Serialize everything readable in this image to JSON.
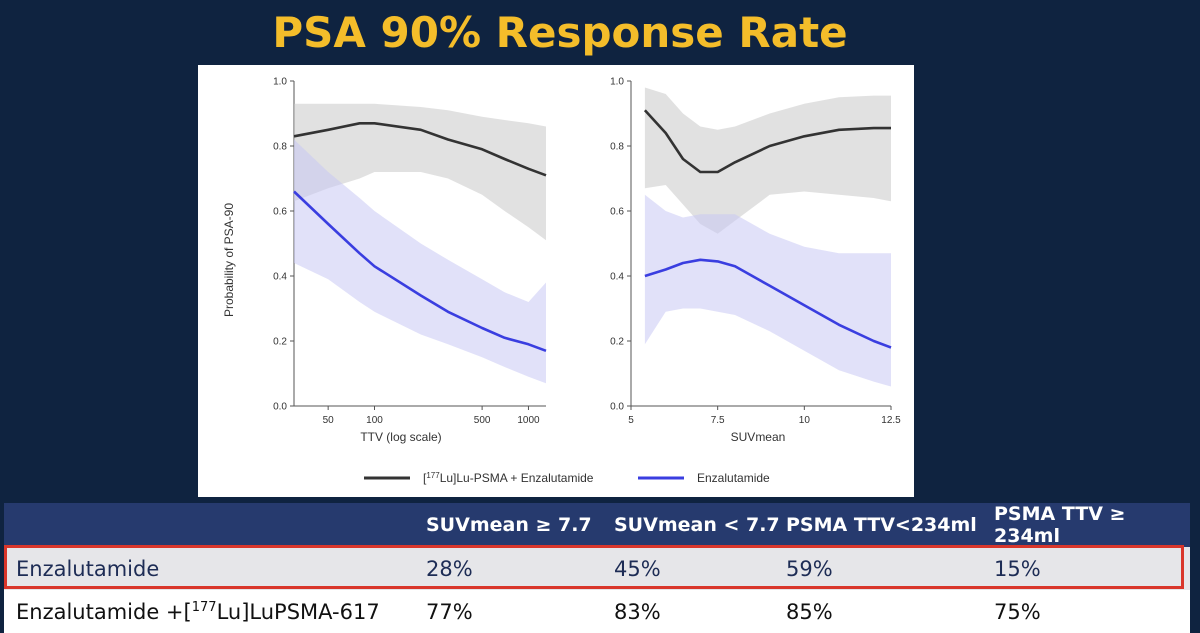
{
  "title": "PSA 90% Response Rate",
  "colors": {
    "combo": "#333333",
    "enza": "#3a3ee0",
    "combo_band": "#c8c8c8",
    "enza_band": "#c8c8f4",
    "highlight": "#d9362b",
    "title": "#f4bd2a"
  },
  "legend": {
    "combo_label": "[177Lu]Lu-PSMA + Enzalutamide",
    "enza_label": "Enzalutamide"
  },
  "chart_data": [
    {
      "type": "line",
      "xlabel": "TTV (log scale)",
      "ylabel": "Probability of PSA-90",
      "xscale": "log",
      "xlim": [
        30,
        1300
      ],
      "ylim": [
        0,
        1
      ],
      "xticks": [
        50,
        100,
        500,
        1000
      ],
      "yticks": [
        "0.0",
        "0.2",
        "0.4",
        "0.6",
        "0.8",
        "1.0"
      ],
      "series": [
        {
          "name": "[177Lu]Lu-PSMA + Enzalutamide",
          "x": [
            30,
            50,
            80,
            100,
            200,
            300,
            500,
            700,
            1000,
            1300
          ],
          "y": [
            0.83,
            0.85,
            0.87,
            0.87,
            0.85,
            0.82,
            0.79,
            0.76,
            0.73,
            0.71
          ],
          "lower": [
            0.63,
            0.67,
            0.7,
            0.72,
            0.72,
            0.7,
            0.65,
            0.6,
            0.55,
            0.51
          ],
          "upper": [
            0.93,
            0.93,
            0.93,
            0.93,
            0.92,
            0.91,
            0.89,
            0.88,
            0.87,
            0.86
          ]
        },
        {
          "name": "Enzalutamide",
          "x": [
            30,
            50,
            80,
            100,
            200,
            300,
            500,
            700,
            1000,
            1300
          ],
          "y": [
            0.66,
            0.56,
            0.47,
            0.43,
            0.34,
            0.29,
            0.24,
            0.21,
            0.19,
            0.17
          ],
          "lower": [
            0.44,
            0.39,
            0.32,
            0.29,
            0.22,
            0.19,
            0.15,
            0.12,
            0.09,
            0.07
          ],
          "upper": [
            0.82,
            0.72,
            0.64,
            0.6,
            0.5,
            0.45,
            0.39,
            0.35,
            0.32,
            0.38
          ]
        }
      ]
    },
    {
      "type": "line",
      "xlabel": "SUVmean",
      "ylabel": "",
      "xlim": [
        5,
        12.5
      ],
      "ylim": [
        0,
        1
      ],
      "xticks": [
        5,
        7.5,
        10,
        12.5
      ],
      "yticks": [
        "0.0",
        "0.2",
        "0.4",
        "0.6",
        "0.8",
        "1.0"
      ],
      "series": [
        {
          "name": "[177Lu]Lu-PSMA + Enzalutamide",
          "x": [
            5.4,
            6,
            6.5,
            7,
            7.5,
            8,
            9,
            10,
            11,
            12,
            12.5
          ],
          "y": [
            0.91,
            0.84,
            0.76,
            0.72,
            0.72,
            0.75,
            0.8,
            0.83,
            0.85,
            0.855,
            0.855
          ],
          "lower": [
            0.67,
            0.68,
            0.62,
            0.56,
            0.53,
            0.57,
            0.65,
            0.66,
            0.65,
            0.64,
            0.63
          ],
          "upper": [
            0.98,
            0.96,
            0.9,
            0.86,
            0.85,
            0.86,
            0.9,
            0.93,
            0.95,
            0.955,
            0.955
          ]
        },
        {
          "name": "Enzalutamide",
          "x": [
            5.4,
            6,
            6.5,
            7,
            7.5,
            8,
            9,
            10,
            11,
            12,
            12.5
          ],
          "y": [
            0.4,
            0.42,
            0.44,
            0.45,
            0.445,
            0.43,
            0.37,
            0.31,
            0.25,
            0.2,
            0.18
          ],
          "lower": [
            0.19,
            0.29,
            0.3,
            0.3,
            0.29,
            0.28,
            0.23,
            0.17,
            0.11,
            0.075,
            0.06
          ],
          "upper": [
            0.65,
            0.6,
            0.58,
            0.59,
            0.59,
            0.59,
            0.53,
            0.49,
            0.47,
            0.47,
            0.47
          ]
        }
      ]
    }
  ],
  "table": {
    "headers": [
      "",
      "SUVmean ≥ 7.7",
      "SUVmean < 7.7",
      "PSMA TTV<234ml",
      "PSMA TTV ≥ 234ml"
    ],
    "rows": [
      {
        "label": "Enzalutamide",
        "values": [
          "28%",
          "45%",
          "59%",
          "15%"
        ]
      },
      {
        "label_prefix": "Enzalutamide +[",
        "label_sup": "177",
        "label_suffix": "Lu]LuPSMA-617",
        "values": [
          "77%",
          "83%",
          "85%",
          "75%"
        ]
      }
    ]
  }
}
